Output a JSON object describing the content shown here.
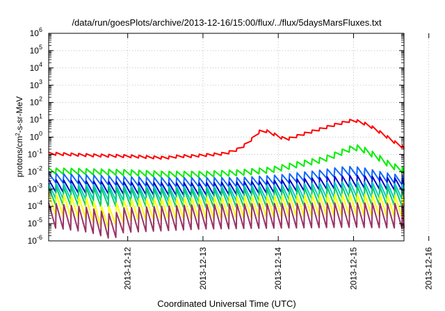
{
  "chart_data": {
    "type": "line",
    "title": "/data/run/goesPlots/archive/2013-12-16/15:00/flux/../flux/5daysMarsFluxes.txt",
    "xlabel": "Coordinated Universal Time (UTC)",
    "ylabel": {
      "base": "protons/cm",
      "sup": "2",
      "rest": "-s-sr-MeV"
    },
    "yscale": "log",
    "ylim_exp": [
      -6,
      6
    ],
    "y_tick_labels": [
      {
        "exp": -6,
        "base": "10",
        "sup": "-6"
      },
      {
        "exp": -5,
        "base": "10",
        "sup": "-5"
      },
      {
        "exp": -4,
        "base": "10",
        "sup": "-4"
      },
      {
        "exp": -3,
        "base": "10",
        "sup": "-3"
      },
      {
        "exp": -2,
        "base": "10",
        "sup": "-2"
      },
      {
        "exp": -1,
        "base": "10",
        "sup": "-1"
      },
      {
        "exp": 0,
        "base": "10",
        "sup": "0"
      },
      {
        "exp": 1,
        "base": "10",
        "sup": "1"
      },
      {
        "exp": 2,
        "base": "10",
        "sup": "2"
      },
      {
        "exp": 3,
        "base": "10",
        "sup": "3"
      },
      {
        "exp": 4,
        "base": "10",
        "sup": "4"
      },
      {
        "exp": 5,
        "base": "10",
        "sup": "5"
      },
      {
        "exp": 6,
        "base": "10",
        "sup": "6"
      }
    ],
    "xlim_days": [
      -1.05,
      3.67
    ],
    "x_ticks": [
      {
        "day": 0,
        "label": "2013-12-12"
      },
      {
        "day": 1,
        "label": "2013-12-13"
      },
      {
        "day": 2,
        "label": "2013-12-14"
      },
      {
        "day": 3,
        "label": "2013-12-15"
      },
      {
        "day": 4,
        "label": "2013-12-16"
      }
    ],
    "grid": true,
    "legend": "none",
    "series": [
      {
        "color": "#ff0000",
        "x": [
          -1.05,
          -0.5,
          0,
          0.5,
          0.7,
          0.85,
          1.0,
          1.3,
          1.5,
          1.63,
          1.78,
          1.9,
          2.1,
          2.35,
          2.55,
          2.7,
          3.0,
          3.2,
          3.4,
          3.6,
          3.67
        ],
        "log10_y": [
          -0.95,
          -1.05,
          -1.1,
          -1.2,
          -1.1,
          -1.1,
          -1.05,
          -0.95,
          -0.65,
          -0.2,
          0.45,
          0.25,
          -0.15,
          0.2,
          0.45,
          0.65,
          1.0,
          0.7,
          0.15,
          -0.45,
          -0.6
        ]
      },
      {
        "color": "#00ee00",
        "x": [
          -1.05,
          -0.5,
          0,
          0.5,
          1.0,
          1.5,
          1.9,
          2.3,
          2.6,
          2.8,
          3.0,
          3.1,
          3.3,
          3.5,
          3.67
        ],
        "log10_y": [
          -1.95,
          -2.0,
          -2.05,
          -2.15,
          -2.15,
          -2.05,
          -1.9,
          -1.55,
          -1.3,
          -0.95,
          -0.6,
          -0.65,
          -1.1,
          -1.65,
          -1.9
        ]
      },
      {
        "color": "#1166ff",
        "x": [
          -1.05,
          -0.5,
          0,
          0.5,
          1.0,
          1.5,
          2.0,
          2.5,
          2.9,
          3.1,
          3.4,
          3.67
        ],
        "log10_y": [
          -2.35,
          -2.45,
          -2.55,
          -2.6,
          -2.6,
          -2.6,
          -2.45,
          -2.2,
          -1.95,
          -2.0,
          -2.3,
          -2.5
        ]
      },
      {
        "color": "#0000cc",
        "x": [
          -1.05,
          -0.5,
          0,
          0.5,
          1.0,
          1.5,
          2.0,
          2.5,
          3.0,
          3.67
        ],
        "log10_y": [
          -2.8,
          -2.9,
          -2.95,
          -3.0,
          -3.0,
          -2.95,
          -2.85,
          -2.7,
          -2.55,
          -2.75
        ]
      },
      {
        "color": "#00cccc",
        "x": [
          -1.05,
          0,
          1.0,
          2.0,
          3.0,
          3.67
        ],
        "log10_y": [
          -3.1,
          -3.25,
          -3.3,
          -3.2,
          -3.0,
          -3.15
        ]
      },
      {
        "color": "#00cc66",
        "x": [
          -1.05,
          0,
          1.0,
          2.0,
          3.0,
          3.67
        ],
        "log10_y": [
          -3.4,
          -3.5,
          -3.55,
          -3.5,
          -3.35,
          -3.45
        ]
      },
      {
        "color": "#ffff00",
        "x": [
          -1.05,
          -0.55,
          -0.3,
          0,
          1.0,
          2.0,
          3.0,
          3.67
        ],
        "log10_y": [
          -3.85,
          -4.1,
          -4.7,
          -4.2,
          -4.1,
          -4.0,
          -3.9,
          -4.0
        ]
      },
      {
        "color": "#993366",
        "x": [
          -1.05,
          -0.5,
          -0.2,
          -0.05,
          0.5,
          1.0,
          2.0,
          3.0,
          3.67
        ],
        "log10_y": [
          -4.5,
          -4.8,
          -5.2,
          -4.8,
          -4.7,
          -4.6,
          -4.55,
          -4.5,
          -4.55
        ]
      }
    ]
  }
}
